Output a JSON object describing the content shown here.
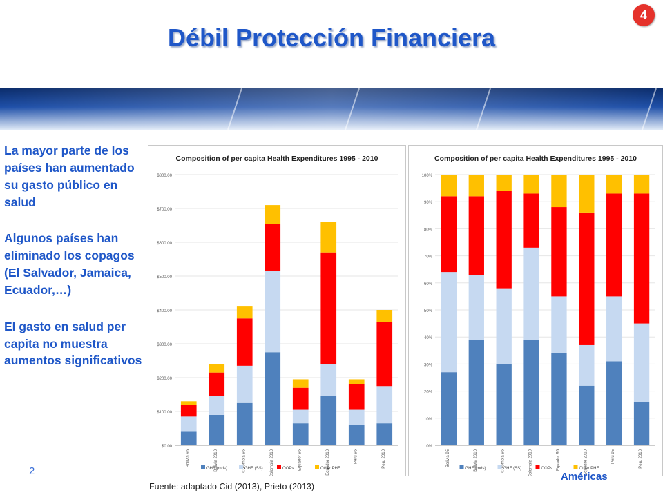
{
  "slide": {
    "title": "Débil Protección Financiera",
    "page_number": "4",
    "slide_number_partial": "2",
    "logo_partial": "Américas"
  },
  "bullets": [
    "La mayor parte de los países han aumentado su gasto público en salud",
    "Algunos países han eliminado los copagos (El Salvador, Jamaica, Ecuador,…)",
    "El gasto en salud per capita  no muestra aumentos significativos"
  ],
  "source": "Fuente: adaptado Cid (2013), Prieto (2013)",
  "colors": {
    "GHE_mds": "#4f81bd",
    "GHE_SS": "#c6d9f1",
    "OOPs": "#ff0000",
    "Other_PHE": "#ffc000",
    "title_blue": "#1f57c8",
    "badge_red": "#e5322b"
  },
  "chart_data": [
    {
      "type": "bar",
      "stacked": true,
      "title": "Composition of per capita Health Expenditures 1995 - 2010",
      "categories": [
        "Bolivia 95",
        "Bolivia 2010",
        "Colombia 95",
        "Colombia 2010",
        "Equador 95",
        "Equador 2010",
        "Peru 95",
        "Peru 2010"
      ],
      "series": [
        {
          "name": "GHE (mds)",
          "values": [
            40,
            90,
            125,
            275,
            65,
            145,
            60,
            65
          ]
        },
        {
          "name": "GHE (SS)",
          "values": [
            45,
            55,
            110,
            240,
            40,
            95,
            45,
            110
          ]
        },
        {
          "name": "OOPs",
          "values": [
            35,
            70,
            140,
            140,
            65,
            330,
            75,
            190
          ]
        },
        {
          "name": "Other PHE",
          "values": [
            10,
            25,
            35,
            55,
            25,
            90,
            15,
            35
          ]
        }
      ],
      "yticks": [
        "$0.00",
        "$100.00",
        "$200.00",
        "$300.00",
        "$400.00",
        "$500.00",
        "$600.00",
        "$700.00",
        "$800.00"
      ],
      "ylim": [
        0,
        800
      ],
      "legend": "bottom"
    },
    {
      "type": "bar",
      "stacked": true,
      "percent": true,
      "title": "Composition of per capita Health Expenditures 1995 - 2010",
      "categories": [
        "Bolivia 95",
        "Bolivia 2010",
        "Colombia 95",
        "Colombia 2010",
        "Equador 95",
        "Equador 2010",
        "Peru 95",
        "Peru 2010"
      ],
      "series": [
        {
          "name": "GHE (mds)",
          "values": [
            27,
            39,
            30,
            39,
            34,
            22,
            31,
            16
          ]
        },
        {
          "name": "GHE (SS)",
          "values": [
            37,
            24,
            28,
            34,
            21,
            15,
            24,
            29
          ]
        },
        {
          "name": "OOPs",
          "values": [
            28,
            29,
            36,
            20,
            33,
            49,
            38,
            48
          ]
        },
        {
          "name": "Other PHE",
          "values": [
            8,
            8,
            6,
            7,
            12,
            14,
            7,
            7
          ]
        }
      ],
      "yticks": [
        "0%",
        "10%",
        "20%",
        "30%",
        "40%",
        "50%",
        "60%",
        "70%",
        "80%",
        "90%",
        "100%"
      ],
      "ylim": [
        0,
        100
      ],
      "legend": "bottom"
    }
  ]
}
